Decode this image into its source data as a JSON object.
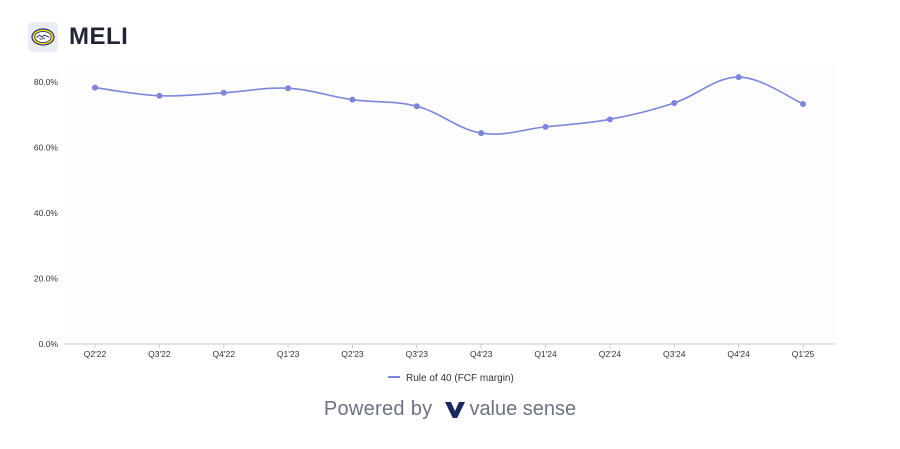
{
  "header": {
    "ticker": "MELI",
    "logo_icon": "handshake-logo-icon"
  },
  "footer": {
    "powered_by": "Powered by",
    "brand_name": "value sense",
    "brand_icon": "value-sense-v-icon"
  },
  "colors": {
    "series": "#7b86db",
    "plot_background": "#fdfdfe",
    "axis": "#c9ccd4",
    "tick_text": "#333333"
  },
  "chart_data": {
    "type": "line",
    "categories": [
      "Q2'22",
      "Q3'22",
      "Q4'22",
      "Q1'23",
      "Q2'23",
      "Q3'23",
      "Q4'23",
      "Q1'24",
      "Q2'24",
      "Q3'24",
      "Q4'24",
      "Q1'25"
    ],
    "series": [
      {
        "name": "Rule of 40 (FCF margin)",
        "values": [
          78.3,
          75.8,
          76.7,
          78.1,
          74.6,
          72.6,
          64.4,
          66.3,
          68.6,
          73.6,
          81.5,
          73.3
        ]
      }
    ],
    "y_ticks": [
      "0.0%",
      "20.0%",
      "40.0%",
      "60.0%",
      "80.0%"
    ],
    "ylim": [
      0,
      82
    ],
    "grid": false,
    "smooth": true,
    "legend_position": "bottom-center"
  }
}
